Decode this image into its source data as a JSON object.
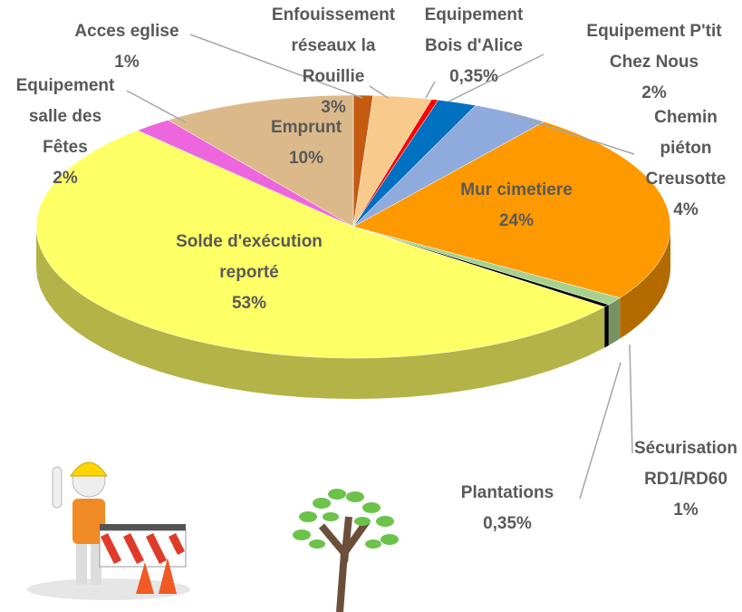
{
  "chart_data": {
    "type": "pie3d",
    "categories": [
      "Acces eglise",
      "Enfouissement réseaux la Rouillie",
      "Equipement Bois d'Alice",
      "Equipement P'tit Chez Nous",
      "Chemin piéton Creusotte",
      "Mur cimetiere",
      "Sécurisation RD1/RD60",
      "Plantations",
      "Solde d'exécution reporté",
      "Equipement salle des Fêtes",
      "Emprunt"
    ],
    "values": [
      1,
      3,
      0.35,
      2,
      4,
      24,
      1,
      0.35,
      53,
      2,
      10
    ],
    "value_labels": [
      "1%",
      "3%",
      "0,35%",
      "2%",
      "4%",
      "24%",
      "1%",
      "0,35%",
      "53%",
      "2%",
      "10%"
    ],
    "colors": [
      "#c55a11",
      "#f8cb8c",
      "#ff0000",
      "#0070c0",
      "#8faadc",
      "#ff9900",
      "#a9d18e",
      "#000000",
      "#ffff66",
      "#ee66dd",
      "#dcb98a"
    ]
  }
}
